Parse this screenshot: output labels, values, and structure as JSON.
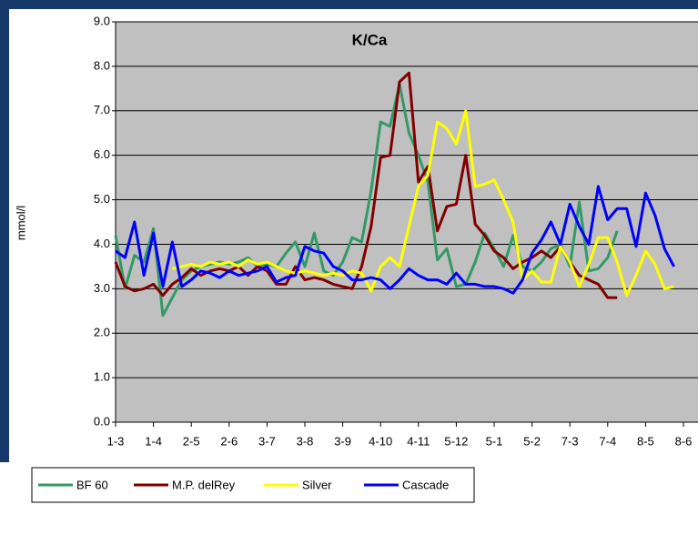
{
  "chart_data": {
    "type": "line",
    "title": "K/Ca",
    "y_label": "mmol/l",
    "categories": [
      "1-3",
      null,
      null,
      null,
      "1-4",
      null,
      null,
      null,
      "2-5",
      null,
      null,
      null,
      "2-6",
      null,
      null,
      null,
      "3-7",
      null,
      null,
      null,
      "3-8",
      null,
      null,
      null,
      "3-9",
      null,
      null,
      null,
      "4-10",
      null,
      null,
      null,
      "4-11",
      null,
      null,
      null,
      "5-12",
      null,
      null,
      null,
      "5-1",
      null,
      null,
      null,
      "5-2",
      null,
      null,
      null,
      "7-3",
      null,
      null,
      null,
      "7-4",
      null,
      null,
      null,
      "8-5",
      null,
      null,
      null,
      "8-6"
    ],
    "series": [
      {
        "name": "BF 60",
        "color": "#339966",
        "values": [
          4.2,
          3.0,
          3.75,
          3.6,
          4.35,
          2.4,
          2.8,
          3.2,
          3.4,
          3.5,
          3.55,
          3.6,
          3.55,
          3.6,
          3.7,
          3.5,
          3.55,
          3.5,
          3.8,
          4.05,
          3.5,
          4.25,
          3.4,
          3.3,
          3.6,
          4.15,
          4.05,
          5.2,
          6.75,
          6.65,
          7.6,
          6.5,
          6.0,
          5.4,
          3.65,
          3.9,
          3.05,
          3.1,
          3.6,
          4.25,
          3.9,
          3.5,
          4.2,
          3.5,
          3.4,
          3.6,
          3.9,
          4.0,
          3.5,
          4.95,
          3.4,
          3.45,
          3.7,
          4.3,
          null,
          null,
          null,
          null,
          null,
          null,
          null
        ]
      },
      {
        "name": "M.P. delRey",
        "color": "#800000",
        "values": [
          3.6,
          3.05,
          2.95,
          3.0,
          3.1,
          2.85,
          3.1,
          3.25,
          3.45,
          3.3,
          3.4,
          3.45,
          3.4,
          3.5,
          3.3,
          3.5,
          3.4,
          3.1,
          3.1,
          3.5,
          3.2,
          3.25,
          3.2,
          3.1,
          3.05,
          3.0,
          3.5,
          4.4,
          5.95,
          6.0,
          7.65,
          7.85,
          5.4,
          5.75,
          4.3,
          4.85,
          4.9,
          6.0,
          4.45,
          4.2,
          3.85,
          3.7,
          3.45,
          3.6,
          3.7,
          3.85,
          3.7,
          3.95,
          3.6,
          3.3,
          3.2,
          3.1,
          2.8,
          2.8,
          null,
          null,
          null,
          null,
          null,
          null,
          null
        ]
      },
      {
        "name": "Silver",
        "color": "#ffff00",
        "values": [
          null,
          null,
          null,
          null,
          null,
          null,
          3.45,
          3.5,
          3.55,
          3.5,
          3.6,
          3.55,
          3.6,
          3.5,
          3.65,
          3.55,
          3.6,
          3.5,
          3.4,
          3.35,
          3.4,
          3.35,
          3.3,
          3.35,
          3.3,
          3.4,
          3.35,
          2.95,
          3.5,
          3.7,
          3.5,
          4.4,
          5.3,
          5.55,
          6.75,
          6.6,
          6.25,
          7.0,
          5.3,
          5.35,
          5.45,
          5.0,
          4.5,
          3.2,
          3.4,
          3.15,
          3.15,
          3.95,
          3.6,
          3.05,
          3.55,
          4.15,
          4.15,
          3.6,
          2.85,
          3.3,
          3.85,
          3.55,
          3.0,
          3.05,
          null
        ]
      },
      {
        "name": "Cascade",
        "color": "#0000ff",
        "values": [
          3.85,
          3.7,
          4.5,
          3.3,
          4.25,
          3.05,
          4.05,
          3.05,
          3.2,
          3.4,
          3.35,
          3.25,
          3.4,
          3.3,
          3.35,
          3.4,
          3.5,
          3.15,
          3.25,
          3.3,
          3.95,
          3.85,
          3.8,
          3.5,
          3.4,
          3.2,
          3.2,
          3.25,
          3.2,
          3.0,
          3.2,
          3.45,
          3.3,
          3.2,
          3.2,
          3.1,
          3.35,
          3.1,
          3.1,
          3.05,
          3.05,
          3.0,
          2.9,
          3.2,
          3.8,
          4.1,
          4.5,
          4.0,
          4.9,
          4.4,
          4.0,
          5.3,
          4.55,
          4.8,
          4.8,
          3.95,
          5.15,
          4.65,
          3.9,
          3.5,
          null
        ]
      }
    ],
    "ylim": [
      0,
      9
    ],
    "yticks": [
      {
        "value": 0,
        "label": "0.0"
      },
      {
        "value": 1,
        "label": "1.0"
      },
      {
        "value": 2,
        "label": "2.0"
      },
      {
        "value": 3,
        "label": "3.0"
      },
      {
        "value": 4,
        "label": "4.0"
      },
      {
        "value": 5,
        "label": "5.0"
      },
      {
        "value": 6,
        "label": "6.0"
      },
      {
        "value": 7,
        "label": "7.0"
      },
      {
        "value": 8,
        "label": "8.0"
      },
      {
        "value": 9,
        "label": "9.0"
      }
    ],
    "grid": true,
    "legend": "bottom"
  }
}
